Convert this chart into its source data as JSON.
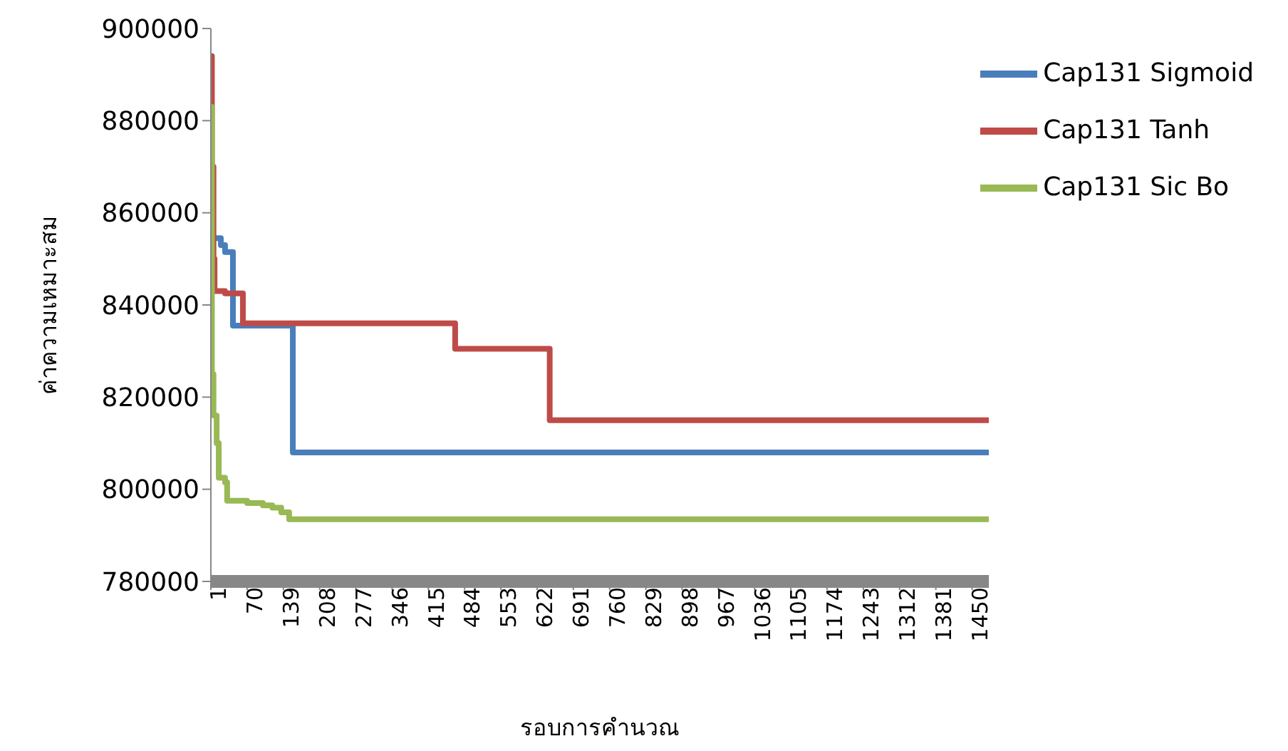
{
  "chart_data": {
    "type": "step",
    "xlabel": "รอบการคำนวณ",
    "ylabel": "ค่าความเหมาะสม",
    "xlim": [
      1,
      1482
    ],
    "xticks": [
      1,
      70,
      139,
      208,
      277,
      346,
      415,
      484,
      553,
      622,
      691,
      760,
      829,
      898,
      967,
      1036,
      1105,
      1174,
      1243,
      1312,
      1381,
      1450
    ],
    "ylim": [
      780000,
      900000
    ],
    "yticks": [
      780000,
      800000,
      820000,
      840000,
      860000,
      880000,
      900000
    ],
    "grid": false,
    "legend": "top right",
    "marker": "none",
    "line_style": "solid",
    "series": [
      {
        "name": "Cap131 Sigmoid",
        "color": "#4a7ebb",
        "x": [
          1,
          5,
          20,
          28,
          43,
          157,
          1482
        ],
        "values": [
          861700,
          854500,
          853000,
          851500,
          835500,
          808000,
          808000
        ]
      },
      {
        "name": "Cap131 Tanh",
        "color": "#be4b48",
        "x": [
          1,
          3,
          6,
          8,
          28,
          62,
          466,
          646,
          1482
        ],
        "values": [
          894000,
          870000,
          850000,
          843000,
          842500,
          836000,
          830500,
          815000,
          815000
        ]
      },
      {
        "name": "Cap131 Sic Bo",
        "color": "#98b954",
        "x": [
          1,
          3,
          6,
          12,
          16,
          28,
          32,
          70,
          100,
          118,
          135,
          150,
          1482
        ],
        "values": [
          883000,
          825000,
          816000,
          810000,
          802500,
          801500,
          797500,
          797000,
          796500,
          796000,
          795000,
          793500,
          793500
        ]
      }
    ]
  }
}
